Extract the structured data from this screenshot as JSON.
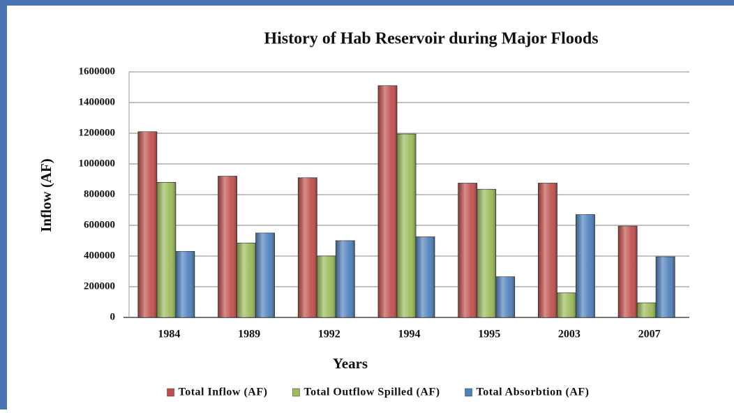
{
  "chart_data": {
    "type": "bar",
    "title": "History of Hab Reservoir during Major Floods",
    "x_label": "Years",
    "y_label": "Inflow (AF)",
    "categories": [
      "1984",
      "1989",
      "1992",
      "1994",
      "1995",
      "2003",
      "2007"
    ],
    "series": [
      {
        "name": "Total Inflow (AF)",
        "color": "#c0504d",
        "values": [
          1210000,
          920000,
          910000,
          1510000,
          875000,
          875000,
          595000
        ]
      },
      {
        "name": "Total Outflow Spilled (AF)",
        "color": "#9bbb59",
        "values": [
          880000,
          485000,
          400000,
          1195000,
          835000,
          160000,
          95000
        ]
      },
      {
        "name": "Total Absorbtion (AF)",
        "color": "#4f81bd",
        "values": [
          430000,
          550000,
          500000,
          525000,
          265000,
          670000,
          395000
        ]
      }
    ],
    "ylim": [
      0,
      1600000
    ],
    "yticks": [
      0,
      200000,
      400000,
      600000,
      800000,
      1000000,
      1200000,
      1400000,
      1600000
    ],
    "grid": true,
    "legend": "bottom"
  }
}
